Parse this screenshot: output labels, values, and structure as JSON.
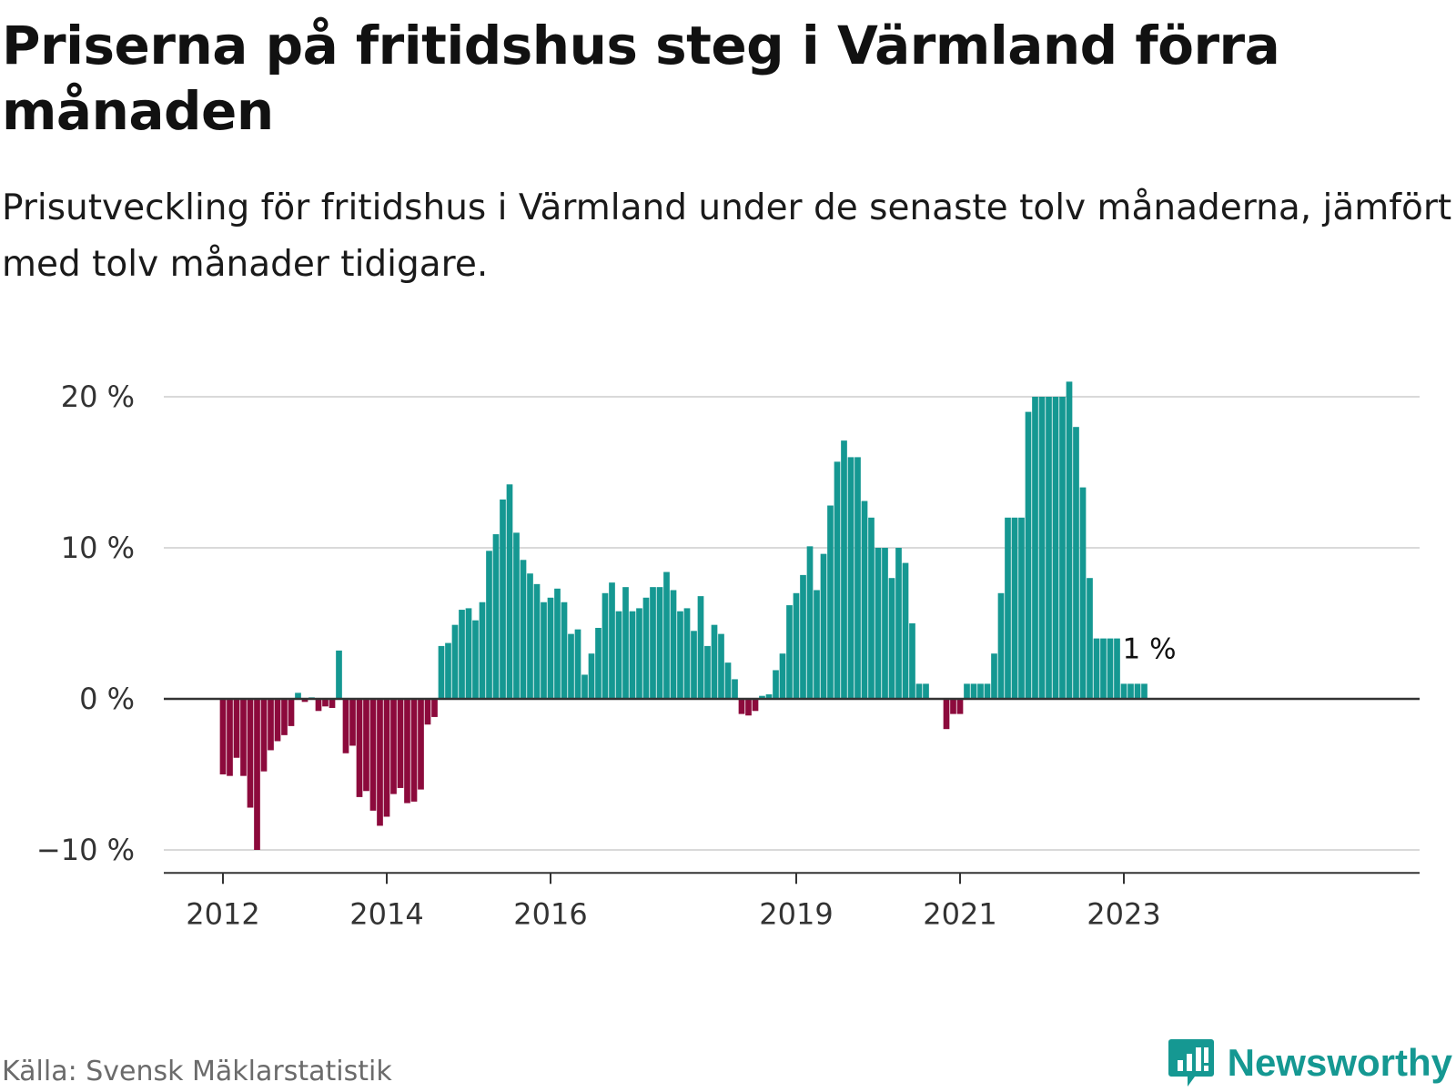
{
  "title": "Priserna på fritidshus steg i Värmland förra månaden",
  "subtitle": "Prisutveckling för fritidshus i Värmland under de senaste tolv månaderna, jämfört med tolv månader tidigare.",
  "source": "Källa: Svensk Mäklarstatistik",
  "brand": "Newsworthy",
  "colors": {
    "positive": "#159892",
    "negative": "#8c0a3c",
    "grid": "#d9d9d9",
    "zero_line": "#333333",
    "brand": "#159892"
  },
  "chart_data": {
    "type": "bar",
    "title": "Priserna på fritidshus steg i Värmland förra månaden",
    "xlabel": "",
    "ylabel": "",
    "ylim": [
      -11,
      22
    ],
    "yticks": [
      -10,
      0,
      10,
      20
    ],
    "ytick_labels": [
      "−10 %",
      "0 %",
      "10 %",
      "20 %"
    ],
    "xticks": [
      {
        "label": "2012",
        "index": 0
      },
      {
        "label": "2014",
        "index": 24
      },
      {
        "label": "2016",
        "index": 48
      },
      {
        "label": "2019",
        "index": 84
      },
      {
        "label": "2021",
        "index": 108
      },
      {
        "label": "2023",
        "index": 132
      }
    ],
    "grid": true,
    "last_value_label": "1 %",
    "values": [
      -5,
      -5.1,
      -3.9,
      -5.1,
      -7.2,
      -10,
      -4.8,
      -3.4,
      -2.8,
      -2.4,
      -1.8,
      0.4,
      -0.2,
      0.1,
      -0.8,
      -0.5,
      -0.6,
      3.2,
      -3.6,
      -3.1,
      -6.5,
      -6.1,
      -7.4,
      -8.4,
      -7.8,
      -6.3,
      -5.9,
      -6.9,
      -6.8,
      -6,
      -1.7,
      -1.2,
      3.5,
      3.7,
      4.9,
      5.9,
      6,
      5.2,
      6.4,
      9.8,
      10.9,
      13.2,
      14.2,
      11,
      9.2,
      8.3,
      7.6,
      6.4,
      6.7,
      7.3,
      6.4,
      4.3,
      4.6,
      1.6,
      3,
      4.7,
      7,
      7.7,
      5.8,
      7.4,
      5.8,
      6,
      6.7,
      7.4,
      7.4,
      8.4,
      7.2,
      5.8,
      6,
      4.5,
      6.8,
      3.5,
      4.9,
      4.3,
      2.4,
      1.3,
      -1,
      -1.1,
      -0.8,
      0.2,
      0.3,
      1.9,
      3,
      6.2,
      7,
      8.2,
      10.1,
      7.2,
      9.6,
      12.8,
      15.7,
      17.1,
      16,
      16,
      13.1,
      12,
      10,
      10,
      8,
      10,
      9,
      5,
      1,
      1,
      0,
      0,
      -2,
      -1,
      -1,
      1,
      1,
      1,
      1,
      3,
      7,
      12,
      12,
      12,
      19,
      20,
      20,
      20,
      20,
      20,
      21,
      18,
      14,
      8,
      4,
      4,
      4,
      4,
      1,
      1,
      1,
      1
    ]
  }
}
